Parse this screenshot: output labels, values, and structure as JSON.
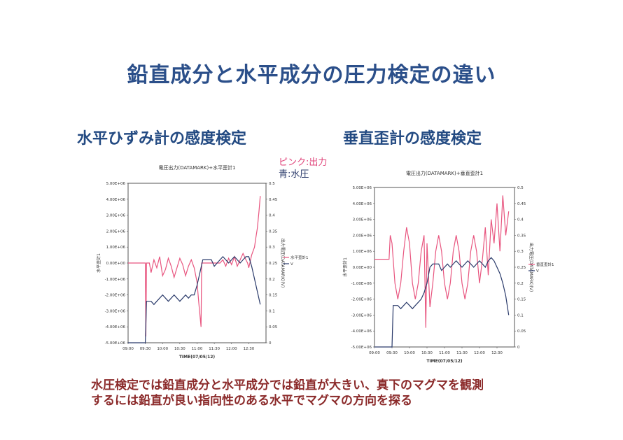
{
  "page": {
    "title": "鉛直成分と水平成分の圧力検定の違い",
    "left_heading": "水平ひずみ計の感度検定",
    "right_heading": "垂直歪計の感度検定",
    "legend_pink": "ピンク:出力",
    "legend_blue": "青:水圧",
    "caption_line1": "水圧検定では鉛直成分と水平成分では鉛直が大きい、真下のマグマを観測",
    "caption_line2": "するには鉛直が良い指向性のある水平でマグマの方向を探る"
  },
  "colors": {
    "title": "#2b4f8a",
    "pink": "#e8557f",
    "blue": "#2a3a6a",
    "caption": "#8b2a2a"
  },
  "chart_data": [
    {
      "type": "line",
      "title": "電圧出力(DATAMARK)+水平歪計1",
      "xlabel": "TIME(07/05/12)",
      "ylabel_left": "水平歪計1",
      "ylabel_right": "出力電圧(DATAMARK)(V)",
      "x_ticks": [
        "09:00",
        "09:30",
        "10:00",
        "10:30",
        "11:00",
        "11:30",
        "12:00",
        "12:30"
      ],
      "y_left_ticks": [
        "5.00E+06",
        "4.00E+06",
        "3.00E+06",
        "2.00E+06",
        "1.00E+06",
        "0.00E+00",
        "-1.00E+06",
        "-2.00E+06",
        "-3.00E+06",
        "-4.00E+06",
        "-5.00E+06"
      ],
      "y_right_ticks": [
        "0.5",
        "0.45",
        "0.4",
        "0.35",
        "0.3",
        "0.25",
        "0.2",
        "0.15",
        "0.1",
        "0.05",
        "0"
      ],
      "ylim_left": [
        -5000000,
        5000000
      ],
      "ylim_right": [
        0,
        0.5
      ],
      "legend": "right",
      "series": [
        {
          "name": "水平歪計1",
          "axis": "left",
          "color": "#e8557f",
          "points": [
            [
              540,
              0
            ],
            [
              570,
              0
            ],
            [
              571,
              -4600000
            ],
            [
              572,
              0
            ],
            [
              577,
              0
            ],
            [
              580,
              -600000
            ],
            [
              585,
              200000
            ],
            [
              590,
              -300000
            ],
            [
              595,
              400000
            ],
            [
              600,
              -800000
            ],
            [
              605,
              -400000
            ],
            [
              610,
              300000
            ],
            [
              615,
              -200000
            ],
            [
              620,
              -900000
            ],
            [
              625,
              -300000
            ],
            [
              630,
              300000
            ],
            [
              635,
              -100000
            ],
            [
              640,
              -800000
            ],
            [
              645,
              -200000
            ],
            [
              650,
              200000
            ],
            [
              655,
              -300000
            ],
            [
              660,
              -1200000
            ],
            [
              663,
              -2500000
            ],
            [
              667,
              -4000000
            ],
            [
              668,
              0
            ],
            [
              700,
              0
            ],
            [
              705,
              200000
            ],
            [
              710,
              -200000
            ],
            [
              715,
              300000
            ],
            [
              720,
              -100000
            ],
            [
              725,
              400000
            ],
            [
              730,
              -200000
            ],
            [
              735,
              200000
            ],
            [
              740,
              600000
            ],
            [
              745,
              200000
            ],
            [
              748,
              0
            ],
            [
              750,
              -300000
            ],
            [
              755,
              500000
            ],
            [
              760,
              1000000
            ],
            [
              762,
              1500000
            ],
            [
              765,
              2200000
            ],
            [
              768,
              3300000
            ],
            [
              770,
              4200000
            ]
          ]
        },
        {
          "name": "V",
          "axis": "right",
          "color": "#2a3a6a",
          "points": [
            [
              540,
              0
            ],
            [
              570,
              0
            ],
            [
              572,
              0.13
            ],
            [
              580,
              0.13
            ],
            [
              585,
              0.12
            ],
            [
              590,
              0.13
            ],
            [
              595,
              0.14
            ],
            [
              600,
              0.15
            ],
            [
              605,
              0.14
            ],
            [
              610,
              0.13
            ],
            [
              615,
              0.14
            ],
            [
              620,
              0.15
            ],
            [
              625,
              0.14
            ],
            [
              630,
              0.13
            ],
            [
              635,
              0.14
            ],
            [
              640,
              0.15
            ],
            [
              645,
              0.14
            ],
            [
              650,
              0.15
            ],
            [
              655,
              0.15
            ],
            [
              660,
              0.18
            ],
            [
              665,
              0.22
            ],
            [
              670,
              0.26
            ],
            [
              685,
              0.26
            ],
            [
              690,
              0.24
            ],
            [
              695,
              0.25
            ],
            [
              700,
              0.26
            ],
            [
              705,
              0.27
            ],
            [
              710,
              0.26
            ],
            [
              715,
              0.25
            ],
            [
              720,
              0.26
            ],
            [
              725,
              0.27
            ],
            [
              730,
              0.26
            ],
            [
              735,
              0.25
            ],
            [
              740,
              0.26
            ],
            [
              745,
              0.27
            ],
            [
              750,
              0.27
            ],
            [
              755,
              0.24
            ],
            [
              760,
              0.2
            ],
            [
              765,
              0.16
            ],
            [
              770,
              0.12
            ]
          ]
        }
      ]
    },
    {
      "type": "line",
      "title": "電圧出力(DATAMARK)+垂直歪計1",
      "xlabel": "TIME(07/05/12)",
      "ylabel_left": "水平歪計1",
      "ylabel_right": "出力電圧(DATAMARK)(V)",
      "x_ticks": [
        "09:00",
        "09:30",
        "10:00",
        "10:30",
        "11:00",
        "11:30",
        "12:00",
        "12:30"
      ],
      "y_left_ticks": [
        "5.00E+06",
        "4.00E+06",
        "3.00E+06",
        "2.00E+06",
        "1.00E+06",
        "0.00E+00",
        "-1.00E+06",
        "-2.00E+06",
        "-3.00E+06",
        "-4.00E+06",
        "-5.00E+06"
      ],
      "y_right_ticks": [
        "0.5",
        "0.45",
        "0.4",
        "0.35",
        "0.3",
        "0.25",
        "0.2",
        "0.15",
        "0.1",
        "0.05",
        "0"
      ],
      "ylim_left": [
        -5000000,
        5000000
      ],
      "ylim_right": [
        0,
        0.5
      ],
      "legend": "right",
      "series": [
        {
          "name": "垂直歪計1",
          "axis": "left",
          "color": "#e8557f",
          "points": [
            [
              540,
              500000
            ],
            [
              565,
              500000
            ],
            [
              567,
              2000000
            ],
            [
              570,
              1500000
            ],
            [
              575,
              -1000000
            ],
            [
              580,
              -2000000
            ],
            [
              585,
              -1000000
            ],
            [
              590,
              1000000
            ],
            [
              595,
              2500000
            ],
            [
              600,
              1500000
            ],
            [
              605,
              -1000000
            ],
            [
              610,
              -2000000
            ],
            [
              615,
              -1000000
            ],
            [
              620,
              1000000
            ],
            [
              625,
              2000000
            ],
            [
              628,
              -3800000
            ],
            [
              630,
              1500000
            ],
            [
              635,
              -2500000
            ],
            [
              640,
              -1000000
            ],
            [
              645,
              1000000
            ],
            [
              650,
              2000000
            ],
            [
              655,
              1000000
            ],
            [
              660,
              -1000000
            ],
            [
              665,
              -2000000
            ],
            [
              670,
              -1000000
            ],
            [
              675,
              1000000
            ],
            [
              680,
              2000000
            ],
            [
              685,
              1000000
            ],
            [
              690,
              -1000000
            ],
            [
              695,
              -2000000
            ],
            [
              700,
              -1000000
            ],
            [
              705,
              1000000
            ],
            [
              710,
              2000000
            ],
            [
              715,
              1000000
            ],
            [
              720,
              -1000000
            ],
            [
              725,
              500000
            ],
            [
              730,
              2500000
            ],
            [
              735,
              -500000
            ],
            [
              740,
              3000000
            ],
            [
              745,
              1500000
            ],
            [
              750,
              4000000
            ],
            [
              755,
              1000000
            ],
            [
              760,
              4500000
            ],
            [
              765,
              2000000
            ],
            [
              770,
              3500000
            ]
          ]
        },
        {
          "name": "V",
          "axis": "right",
          "color": "#2a3a6a",
          "points": [
            [
              540,
              0
            ],
            [
              570,
              0
            ],
            [
              572,
              0.13
            ],
            [
              580,
              0.13
            ],
            [
              585,
              0.12
            ],
            [
              590,
              0.13
            ],
            [
              595,
              0.14
            ],
            [
              600,
              0.13
            ],
            [
              605,
              0.12
            ],
            [
              610,
              0.13
            ],
            [
              615,
              0.14
            ],
            [
              620,
              0.15
            ],
            [
              625,
              0.17
            ],
            [
              630,
              0.2
            ],
            [
              635,
              0.25
            ],
            [
              640,
              0.26
            ],
            [
              650,
              0.26
            ],
            [
              655,
              0.24
            ],
            [
              660,
              0.25
            ],
            [
              665,
              0.26
            ],
            [
              670,
              0.25
            ],
            [
              675,
              0.26
            ],
            [
              680,
              0.27
            ],
            [
              685,
              0.26
            ],
            [
              690,
              0.25
            ],
            [
              695,
              0.26
            ],
            [
              700,
              0.27
            ],
            [
              705,
              0.26
            ],
            [
              710,
              0.25
            ],
            [
              715,
              0.26
            ],
            [
              720,
              0.27
            ],
            [
              725,
              0.26
            ],
            [
              730,
              0.25
            ],
            [
              735,
              0.27
            ],
            [
              740,
              0.28
            ],
            [
              745,
              0.27
            ],
            [
              750,
              0.25
            ],
            [
              755,
              0.23
            ],
            [
              760,
              0.2
            ],
            [
              765,
              0.16
            ],
            [
              770,
              0.1
            ]
          ]
        }
      ]
    }
  ]
}
